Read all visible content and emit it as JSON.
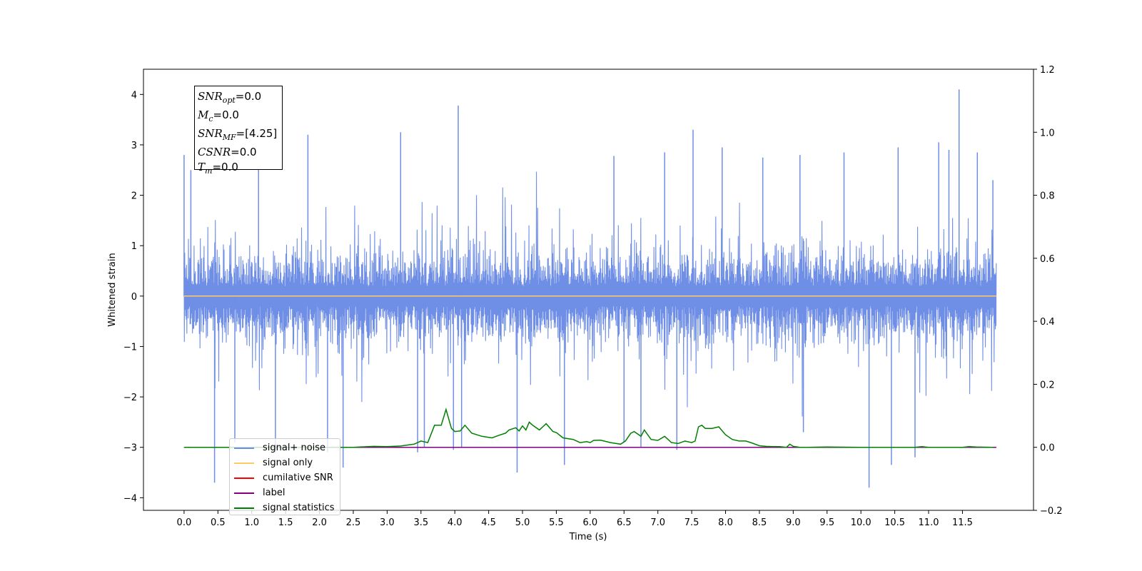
{
  "chart_data": {
    "type": "line",
    "xlabel": "Time (s)",
    "ylabel": "Whitened strain",
    "xlim": [
      -0.6,
      12.55
    ],
    "ylim": [
      -4.25,
      4.5
    ],
    "y2lim": [
      -0.2,
      1.2
    ],
    "x_ticks": [
      0.0,
      0.5,
      1.0,
      1.5,
      2.0,
      2.5,
      3.0,
      3.5,
      4.0,
      4.5,
      5.0,
      5.5,
      6.0,
      6.5,
      7.0,
      7.5,
      8.0,
      8.5,
      9.0,
      9.5,
      10.0,
      10.5,
      11.0,
      11.5
    ],
    "x_tick_labels": [
      "0.0",
      "0.5",
      "1.0",
      "1.5",
      "2.0",
      "2.5",
      "3.0",
      "3.5",
      "4.0",
      "4.5",
      "5.0",
      "5.5",
      "6.0",
      "6.5",
      "7.0",
      "7.5",
      "8.0",
      "8.5",
      "9.0",
      "9.5",
      "10.0",
      "10.5",
      "11.0",
      "11.5"
    ],
    "y_ticks": [
      -4,
      -3,
      -2,
      -1,
      0,
      1,
      2,
      3,
      4
    ],
    "y_tick_labels": [
      "−4",
      "−3",
      "−2",
      "−1",
      "0",
      "1",
      "2",
      "3",
      "4"
    ],
    "y2_ticks": [
      -0.2,
      0.0,
      0.2,
      0.4,
      0.6,
      0.8,
      1.0,
      1.2
    ],
    "y2_tick_labels": [
      "−0.2",
      "0.0",
      "0.2",
      "0.4",
      "0.6",
      "0.8",
      "1.0",
      "1.2"
    ],
    "grid": false,
    "legend_position": "lower-left",
    "noise": {
      "x_range": [
        0.0,
        12.0
      ],
      "typical_pos": [
        1.3,
        2.6
      ],
      "typical_neg": [
        -1.4,
        -2.8
      ],
      "spikes": [
        [
          0.0,
          2.8
        ],
        [
          0.1,
          2.5
        ],
        [
          0.45,
          -3.7
        ],
        [
          0.75,
          -2.9
        ],
        [
          1.1,
          2.7
        ],
        [
          1.35,
          -3.1
        ],
        [
          1.83,
          3.2
        ],
        [
          2.12,
          -3.1
        ],
        [
          2.35,
          -3.4
        ],
        [
          3.2,
          3.25
        ],
        [
          3.45,
          -3.1
        ],
        [
          3.55,
          -3.0
        ],
        [
          4.05,
          3.78
        ],
        [
          3.98,
          -3.05
        ],
        [
          4.1,
          -3.0
        ],
        [
          4.92,
          -3.5
        ],
        [
          5.62,
          -3.35
        ],
        [
          6.35,
          2.78
        ],
        [
          6.5,
          -2.9
        ],
        [
          6.75,
          -3.0
        ],
        [
          7.1,
          2.85
        ],
        [
          7.28,
          -3.05
        ],
        [
          7.52,
          3.3
        ],
        [
          7.95,
          2.95
        ],
        [
          8.55,
          2.75
        ],
        [
          9.1,
          2.8
        ],
        [
          9.15,
          -2.7
        ],
        [
          9.75,
          2.85
        ],
        [
          10.12,
          -3.8
        ],
        [
          10.45,
          -3.35
        ],
        [
          10.55,
          2.95
        ],
        [
          10.8,
          -3.2
        ],
        [
          11.15,
          3.05
        ],
        [
          11.3,
          2.9
        ],
        [
          11.45,
          4.1
        ],
        [
          11.72,
          2.85
        ],
        [
          11.95,
          2.3
        ]
      ]
    },
    "series": [
      {
        "name": "signal+ noise",
        "axis": "left",
        "color": "#6f8ee6"
      },
      {
        "name": "signal only",
        "axis": "left",
        "color": "#ffc966",
        "x": [
          0.0,
          12.0
        ],
        "values": [
          0.0,
          0.0
        ]
      },
      {
        "name": "cumilative SNR",
        "axis": "right",
        "color": "#ff0000",
        "x": [
          0.0,
          12.0
        ],
        "values": [
          0.0,
          0.0
        ]
      },
      {
        "name": "label",
        "axis": "right",
        "color": "#800080",
        "x": [
          0.0,
          12.0
        ],
        "values": [
          0.0,
          0.0
        ]
      },
      {
        "name": "signal statistics",
        "axis": "right",
        "color": "#008000",
        "x": [
          0.0,
          2.5,
          2.8,
          3.0,
          3.2,
          3.4,
          3.5,
          3.6,
          3.7,
          3.8,
          3.87,
          3.95,
          4.0,
          4.08,
          4.15,
          4.25,
          4.4,
          4.55,
          4.65,
          4.75,
          4.8,
          4.9,
          4.95,
          5.0,
          5.05,
          5.1,
          5.15,
          5.25,
          5.35,
          5.45,
          5.5,
          5.6,
          5.75,
          5.85,
          5.95,
          6.0,
          6.05,
          6.15,
          6.3,
          6.45,
          6.52,
          6.6,
          6.65,
          6.75,
          6.8,
          6.9,
          7.0,
          7.1,
          7.2,
          7.3,
          7.4,
          7.5,
          7.55,
          7.6,
          7.65,
          7.7,
          7.8,
          7.9,
          8.0,
          8.1,
          8.2,
          8.3,
          8.4,
          8.5,
          8.6,
          8.7,
          8.8,
          8.9,
          8.95,
          9.0,
          9.1,
          9.2,
          9.5,
          10.0,
          10.5,
          10.8,
          10.9,
          11.0,
          11.5,
          11.6,
          11.7,
          11.95
        ],
        "values": [
          0.0,
          0.0,
          0.003,
          0.002,
          0.004,
          0.01,
          0.02,
          0.015,
          0.07,
          0.07,
          0.12,
          0.06,
          0.05,
          0.052,
          0.07,
          0.045,
          0.035,
          0.03,
          0.038,
          0.045,
          0.055,
          0.062,
          0.052,
          0.068,
          0.055,
          0.08,
          0.07,
          0.055,
          0.075,
          0.05,
          0.047,
          0.03,
          0.025,
          0.015,
          0.018,
          0.015,
          0.022,
          0.023,
          0.015,
          0.01,
          0.02,
          0.045,
          0.05,
          0.035,
          0.055,
          0.025,
          0.022,
          0.035,
          0.015,
          0.012,
          0.02,
          0.015,
          0.02,
          0.065,
          0.07,
          0.06,
          0.06,
          0.065,
          0.04,
          0.025,
          0.02,
          0.02,
          0.013,
          0.005,
          0.003,
          0.002,
          0.002,
          0.0,
          0.01,
          0.003,
          0.0,
          0.0,
          0.001,
          0.0,
          0.0,
          0.0,
          0.002,
          0.0,
          0.0,
          0.002,
          0.001,
          0.0
        ]
      }
    ]
  },
  "annotation": {
    "snr_opt_label": "SNR",
    "snr_opt_sub": "opt",
    "snr_opt_value": "=0.0",
    "mc_label": "M",
    "mc_sub": "c",
    "mc_value": "=0.0",
    "snr_mf_label": "SNR",
    "snr_mf_sub": "MF",
    "snr_mf_value": "=[4.25]",
    "csnr_label": "CSNR",
    "csnr_value": "=0.0",
    "tm_label": "T",
    "tm_sub": "m",
    "tm_value": "=0.0"
  },
  "legend": {
    "items": [
      {
        "label": "signal+ noise",
        "color": "#6f8ee6"
      },
      {
        "label": "signal only",
        "color": "#ffc966"
      },
      {
        "label": "cumilative SNR",
        "color": "#ff0000"
      },
      {
        "label": "label",
        "color": "#800080"
      },
      {
        "label": "signal statistics",
        "color": "#008000"
      }
    ]
  }
}
